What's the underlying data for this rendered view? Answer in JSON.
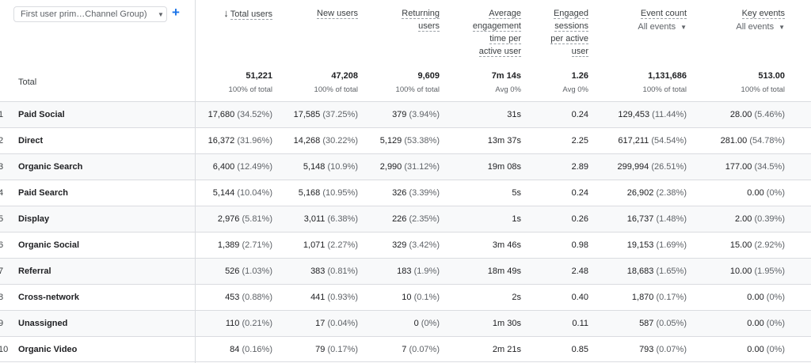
{
  "dimension": {
    "label": "First user prim…Channel Group)",
    "add_icon": "+"
  },
  "total_label": "Total",
  "columns": [
    {
      "lines": [
        "Total users"
      ],
      "sorted": true,
      "total": "51,221",
      "total_sub": "100% of total"
    },
    {
      "lines": [
        "New users"
      ],
      "total": "47,208",
      "total_sub": "100% of total"
    },
    {
      "lines": [
        "Returning",
        "users"
      ],
      "total": "9,609",
      "total_sub": "100% of total"
    },
    {
      "lines": [
        "Average",
        "engagement",
        "time per",
        "active user"
      ],
      "total": "7m 14s",
      "total_sub": "Avg 0%"
    },
    {
      "lines": [
        "Engaged",
        "sessions",
        "per active",
        "user"
      ],
      "total": "1.26",
      "total_sub": "Avg 0%"
    },
    {
      "lines": [
        "Event count"
      ],
      "sub": "All events",
      "total": "1,131,686",
      "total_sub": "100% of total"
    },
    {
      "lines": [
        "Key events"
      ],
      "sub": "All events",
      "total": "513.00",
      "total_sub": "100% of total"
    }
  ],
  "rows": [
    {
      "idx": "1",
      "name": "Paid Social",
      "cells": [
        [
          "17,680",
          "(34.52%)"
        ],
        [
          "17,585",
          "(37.25%)"
        ],
        [
          "379",
          "(3.94%)"
        ],
        [
          "31s",
          ""
        ],
        [
          "0.24",
          ""
        ],
        [
          "129,453",
          "(11.44%)"
        ],
        [
          "28.00",
          "(5.46%)"
        ]
      ]
    },
    {
      "idx": "2",
      "name": "Direct",
      "cells": [
        [
          "16,372",
          "(31.96%)"
        ],
        [
          "14,268",
          "(30.22%)"
        ],
        [
          "5,129",
          "(53.38%)"
        ],
        [
          "13m 37s",
          ""
        ],
        [
          "2.25",
          ""
        ],
        [
          "617,211",
          "(54.54%)"
        ],
        [
          "281.00",
          "(54.78%)"
        ]
      ]
    },
    {
      "idx": "3",
      "name": "Organic Search",
      "cells": [
        [
          "6,400",
          "(12.49%)"
        ],
        [
          "5,148",
          "(10.9%)"
        ],
        [
          "2,990",
          "(31.12%)"
        ],
        [
          "19m 08s",
          ""
        ],
        [
          "2.89",
          ""
        ],
        [
          "299,994",
          "(26.51%)"
        ],
        [
          "177.00",
          "(34.5%)"
        ]
      ]
    },
    {
      "idx": "4",
      "name": "Paid Search",
      "cells": [
        [
          "5,144",
          "(10.04%)"
        ],
        [
          "5,168",
          "(10.95%)"
        ],
        [
          "326",
          "(3.39%)"
        ],
        [
          "5s",
          ""
        ],
        [
          "0.24",
          ""
        ],
        [
          "26,902",
          "(2.38%)"
        ],
        [
          "0.00",
          "(0%)"
        ]
      ]
    },
    {
      "idx": "5",
      "name": "Display",
      "cells": [
        [
          "2,976",
          "(5.81%)"
        ],
        [
          "3,011",
          "(6.38%)"
        ],
        [
          "226",
          "(2.35%)"
        ],
        [
          "1s",
          ""
        ],
        [
          "0.26",
          ""
        ],
        [
          "16,737",
          "(1.48%)"
        ],
        [
          "2.00",
          "(0.39%)"
        ]
      ]
    },
    {
      "idx": "6",
      "name": "Organic Social",
      "cells": [
        [
          "1,389",
          "(2.71%)"
        ],
        [
          "1,071",
          "(2.27%)"
        ],
        [
          "329",
          "(3.42%)"
        ],
        [
          "3m 46s",
          ""
        ],
        [
          "0.98",
          ""
        ],
        [
          "19,153",
          "(1.69%)"
        ],
        [
          "15.00",
          "(2.92%)"
        ]
      ]
    },
    {
      "idx": "7",
      "name": "Referral",
      "cells": [
        [
          "526",
          "(1.03%)"
        ],
        [
          "383",
          "(0.81%)"
        ],
        [
          "183",
          "(1.9%)"
        ],
        [
          "18m 49s",
          ""
        ],
        [
          "2.48",
          ""
        ],
        [
          "18,683",
          "(1.65%)"
        ],
        [
          "10.00",
          "(1.95%)"
        ]
      ]
    },
    {
      "idx": "8",
      "name": "Cross-network",
      "cells": [
        [
          "453",
          "(0.88%)"
        ],
        [
          "441",
          "(0.93%)"
        ],
        [
          "10",
          "(0.1%)"
        ],
        [
          "2s",
          ""
        ],
        [
          "0.40",
          ""
        ],
        [
          "1,870",
          "(0.17%)"
        ],
        [
          "0.00",
          "(0%)"
        ]
      ]
    },
    {
      "idx": "9",
      "name": "Unassigned",
      "cells": [
        [
          "110",
          "(0.21%)"
        ],
        [
          "17",
          "(0.04%)"
        ],
        [
          "0",
          "(0%)"
        ],
        [
          "1m 30s",
          ""
        ],
        [
          "0.11",
          ""
        ],
        [
          "587",
          "(0.05%)"
        ],
        [
          "0.00",
          "(0%)"
        ]
      ]
    },
    {
      "idx": "10",
      "name": "Organic Video",
      "cells": [
        [
          "84",
          "(0.16%)"
        ],
        [
          "79",
          "(0.17%)"
        ],
        [
          "7",
          "(0.07%)"
        ],
        [
          "2m 21s",
          ""
        ],
        [
          "0.85",
          ""
        ],
        [
          "793",
          "(0.07%)"
        ],
        [
          "0.00",
          "(0%)"
        ]
      ]
    }
  ]
}
